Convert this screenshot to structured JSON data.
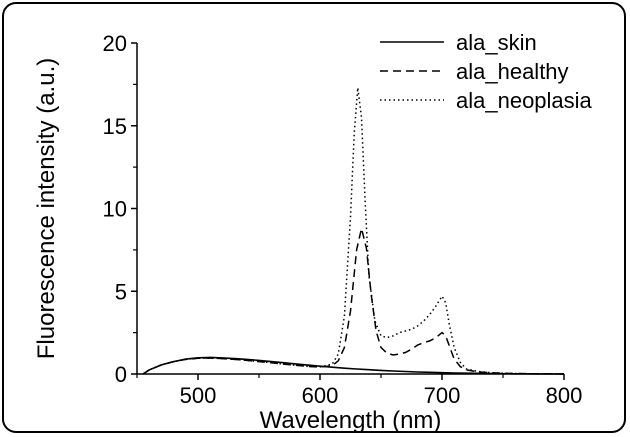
{
  "chart_data": {
    "type": "line",
    "xlabel": "Wavelength (nm)",
    "ylabel": "Fluorescence intensity (a.u.)",
    "xlim": [
      450,
      800
    ],
    "ylim": [
      0,
      20
    ],
    "xticks": [
      500,
      600,
      700,
      800
    ],
    "yticks": [
      0,
      5,
      10,
      15,
      20
    ],
    "grid": false,
    "legend_position": "top-right",
    "series": [
      {
        "name": "ala_skin",
        "line_style": "solid",
        "x": [
          455,
          460,
          470,
          480,
          490,
          500,
          510,
          520,
          530,
          540,
          550,
          560,
          570,
          580,
          590,
          600,
          610,
          620,
          630,
          640,
          650,
          660,
          670,
          680,
          690,
          700,
          710,
          720,
          730,
          740,
          750,
          760,
          770,
          780,
          790,
          800
        ],
        "y": [
          0.0,
          0.25,
          0.55,
          0.75,
          0.9,
          0.98,
          1.0,
          0.97,
          0.93,
          0.88,
          0.82,
          0.75,
          0.68,
          0.61,
          0.54,
          0.47,
          0.41,
          0.35,
          0.3,
          0.26,
          0.22,
          0.18,
          0.15,
          0.12,
          0.1,
          0.08,
          0.06,
          0.05,
          0.04,
          0.03,
          0.02,
          0.01,
          0.01,
          0.0,
          0.0,
          0.0
        ]
      },
      {
        "name": "ala_healthy",
        "line_style": "dashed",
        "x": [
          455,
          460,
          470,
          480,
          490,
          500,
          510,
          520,
          530,
          540,
          550,
          560,
          570,
          580,
          590,
          600,
          610,
          615,
          620,
          625,
          630,
          634,
          638,
          642,
          646,
          650,
          655,
          660,
          665,
          670,
          675,
          680,
          685,
          690,
          695,
          700,
          703,
          706,
          710,
          715,
          720,
          730,
          740,
          750,
          760,
          770,
          780,
          790,
          800
        ],
        "y": [
          0.0,
          0.25,
          0.55,
          0.75,
          0.88,
          0.95,
          0.96,
          0.93,
          0.88,
          0.82,
          0.75,
          0.68,
          0.6,
          0.53,
          0.46,
          0.42,
          0.5,
          0.8,
          1.6,
          3.8,
          7.5,
          8.8,
          7.6,
          4.8,
          2.6,
          1.6,
          1.25,
          1.15,
          1.2,
          1.3,
          1.5,
          1.75,
          1.9,
          2.0,
          2.2,
          2.5,
          2.3,
          1.7,
          0.9,
          0.45,
          0.25,
          0.12,
          0.08,
          0.05,
          0.03,
          0.02,
          0.01,
          0.01,
          0.0
        ]
      },
      {
        "name": "ala_neoplasia",
        "line_style": "dotted",
        "x": [
          455,
          460,
          470,
          480,
          490,
          500,
          510,
          520,
          530,
          540,
          550,
          560,
          570,
          580,
          590,
          600,
          610,
          615,
          620,
          625,
          628,
          631,
          634,
          637,
          640,
          645,
          650,
          655,
          660,
          665,
          670,
          675,
          680,
          685,
          690,
          695,
          700,
          703,
          706,
          710,
          715,
          720,
          730,
          740,
          750,
          760,
          770,
          780,
          790,
          800
        ],
        "y": [
          0.0,
          0.25,
          0.55,
          0.75,
          0.88,
          0.95,
          0.96,
          0.93,
          0.88,
          0.82,
          0.75,
          0.68,
          0.6,
          0.53,
          0.46,
          0.42,
          0.6,
          1.2,
          3.5,
          9.5,
          14.5,
          17.3,
          15.5,
          10.5,
          6.0,
          3.2,
          2.3,
          2.2,
          2.3,
          2.5,
          2.6,
          2.7,
          2.9,
          3.2,
          3.6,
          4.1,
          4.7,
          4.3,
          3.0,
          1.6,
          0.7,
          0.3,
          0.15,
          0.08,
          0.05,
          0.03,
          0.02,
          0.01,
          0.01,
          0.0
        ]
      }
    ]
  }
}
